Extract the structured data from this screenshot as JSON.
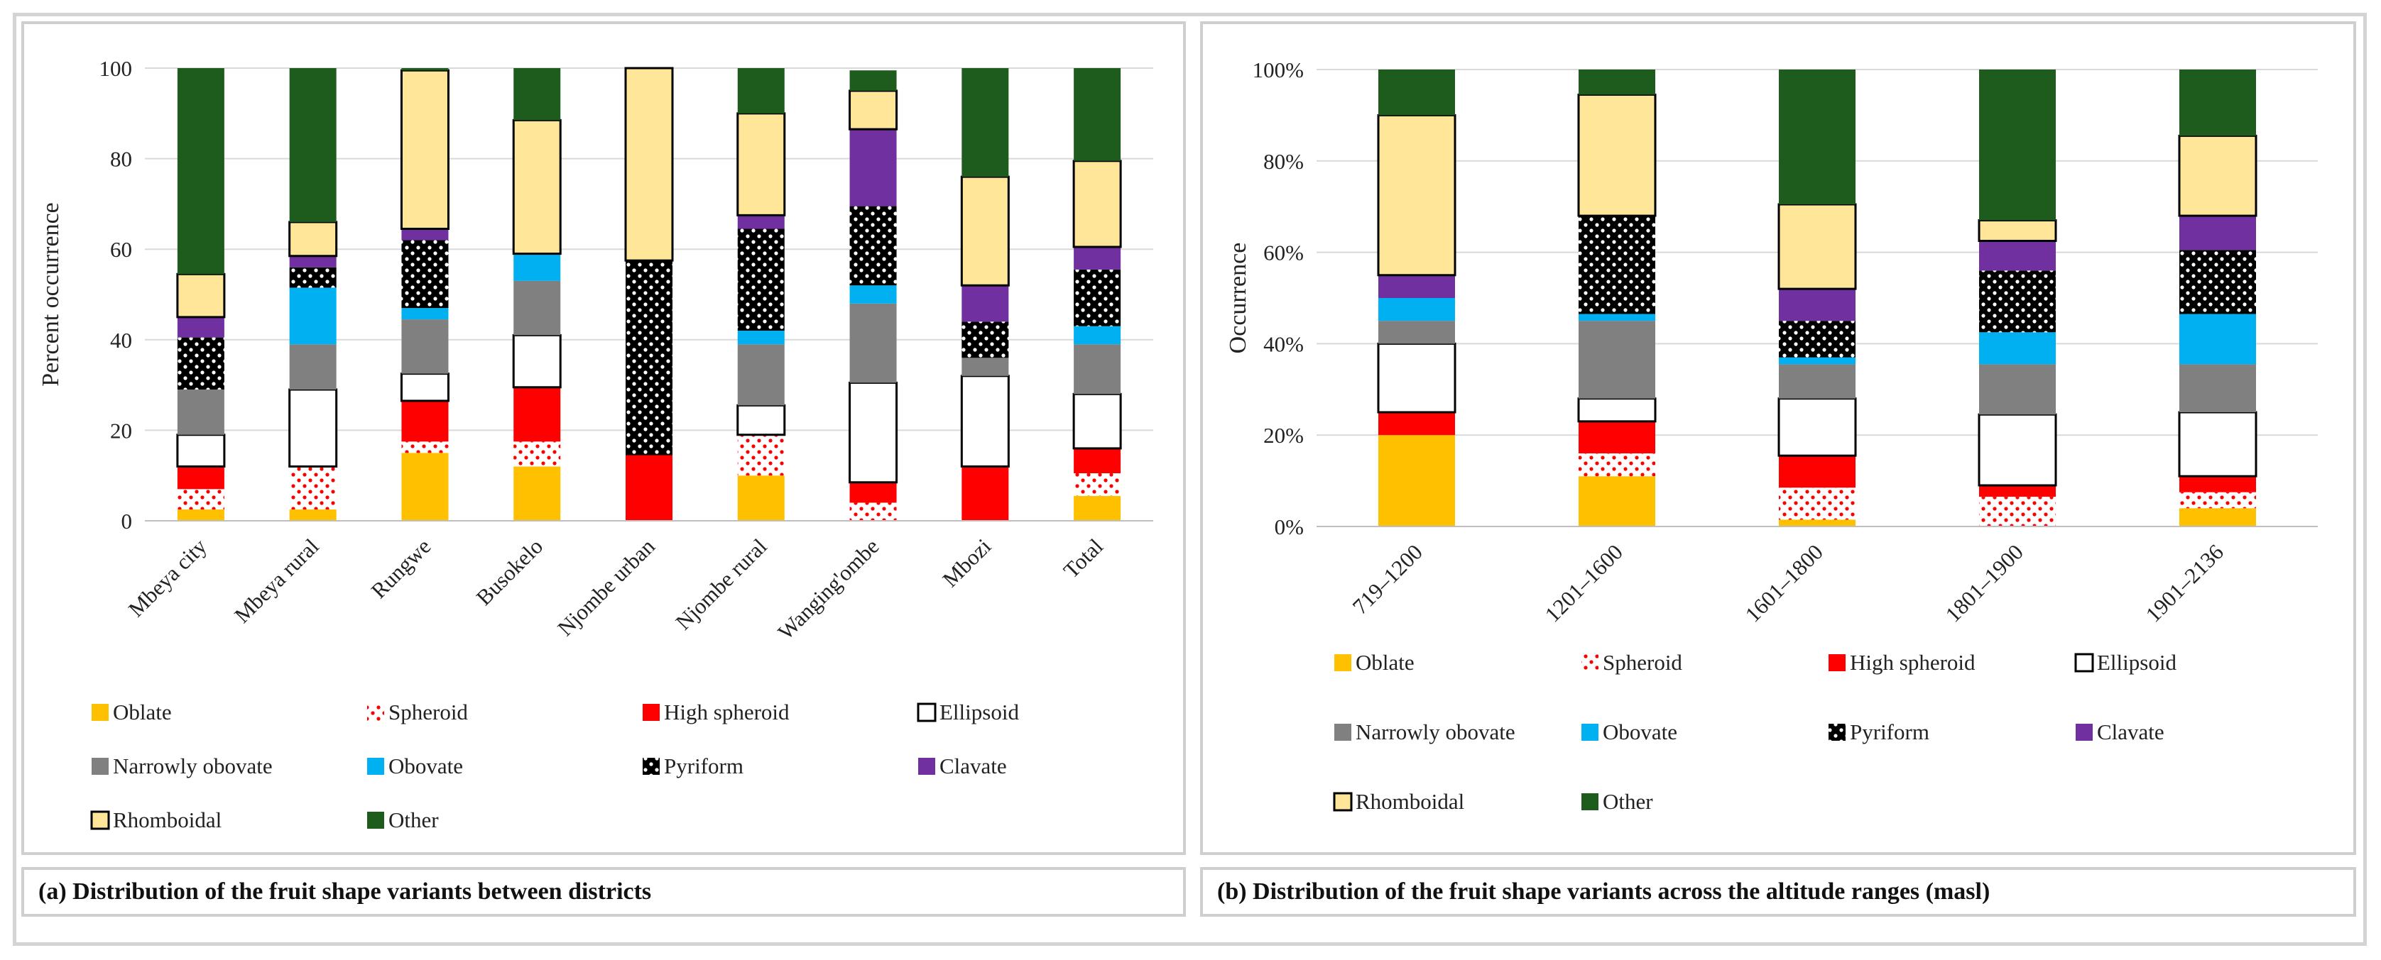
{
  "chart_data": [
    {
      "type": "bar",
      "stacked": true,
      "title": "",
      "xlabel": "",
      "ylabel": "Percent occurrence",
      "ylim": [
        0,
        100
      ],
      "yticks": [
        "0",
        "20",
        "40",
        "60",
        "80",
        "100"
      ],
      "grid": true,
      "legend_position": "bottom",
      "caption": "(a) Distribution of the fruit shape variants between districts",
      "categories": [
        "Mbeya city",
        "Mbeya rural",
        "Rungwe",
        "Busokelo",
        "Njombe urban",
        "Njombe rural",
        "Wanging'ombe",
        "Mbozi",
        "Total"
      ],
      "series": [
        {
          "name": "Oblate",
          "values": [
            2.5,
            2.5,
            15,
            12,
            0,
            10,
            0,
            0,
            5.5
          ]
        },
        {
          "name": "Spheroid",
          "values": [
            4.5,
            9.5,
            2.5,
            5.5,
            0,
            9,
            4,
            0,
            5
          ]
        },
        {
          "name": "High spheroid",
          "values": [
            5,
            0,
            9,
            12,
            14.5,
            0,
            4.5,
            12,
            5.5
          ]
        },
        {
          "name": "Ellipsoid",
          "values": [
            7,
            17,
            6,
            11.5,
            0,
            6.5,
            22,
            20,
            12
          ]
        },
        {
          "name": "Narrowly obovate",
          "values": [
            10,
            10,
            12,
            12,
            0,
            13.5,
            17.5,
            4,
            11
          ]
        },
        {
          "name": "Obovate",
          "values": [
            0,
            12.5,
            2.5,
            6,
            0,
            3,
            4,
            0,
            4
          ]
        },
        {
          "name": "Pyriform",
          "values": [
            11.5,
            4.5,
            15,
            0,
            43,
            22.5,
            17.5,
            8,
            12.5
          ]
        },
        {
          "name": "Clavate",
          "values": [
            4.5,
            2.5,
            2.5,
            0,
            0,
            3,
            17,
            8,
            5
          ]
        },
        {
          "name": "Rhomboidal",
          "values": [
            9.5,
            7.5,
            35,
            29.5,
            42.5,
            22.5,
            8.5,
            24,
            19
          ]
        },
        {
          "name": "Other",
          "values": [
            45.5,
            34,
            0.5,
            11.5,
            0,
            10,
            4.5,
            24,
            20.5
          ]
        }
      ]
    },
    {
      "type": "bar",
      "stacked": true,
      "title": "",
      "xlabel": "",
      "ylabel": "Occurrence",
      "ylim": [
        0,
        100
      ],
      "yticks": [
        "0%",
        "20%",
        "40%",
        "60%",
        "80%",
        "100%"
      ],
      "grid": true,
      "legend_position": "bottom",
      "caption": "(b) Distribution of the fruit shape variants across the altitude ranges (masl)",
      "categories": [
        "719–1200",
        "1201–1600",
        "1601–1800",
        "1801–1900",
        "1901–2136"
      ],
      "series": [
        {
          "name": "Oblate",
          "values": [
            20,
            11,
            1.5,
            0,
            4
          ]
        },
        {
          "name": "Spheroid",
          "values": [
            0,
            5,
            7,
            6.5,
            3.5
          ]
        },
        {
          "name": "High spheroid",
          "values": [
            5,
            7,
            7,
            2.5,
            3.5
          ]
        },
        {
          "name": "Ellipsoid",
          "values": [
            15,
            5,
            12.5,
            15.5,
            14
          ]
        },
        {
          "name": "Narrowly obovate",
          "values": [
            5,
            17,
            7.5,
            11,
            10.5
          ]
        },
        {
          "name": "Obovate",
          "values": [
            5,
            1.5,
            1.5,
            7,
            11
          ]
        },
        {
          "name": "Pyriform",
          "values": [
            0,
            21.5,
            8,
            13.5,
            14
          ]
        },
        {
          "name": "Clavate",
          "values": [
            5,
            0,
            7,
            6.5,
            7.5
          ]
        },
        {
          "name": "Rhomboidal",
          "values": [
            35,
            26.5,
            18.5,
            4.5,
            17.5
          ]
        },
        {
          "name": "Other",
          "values": [
            10,
            5.5,
            29.5,
            33,
            14.5
          ]
        }
      ]
    }
  ],
  "series_styles": {
    "Oblate": {
      "fill": "#FFC000",
      "pattern": "none",
      "stroke": "none"
    },
    "Spheroid": {
      "fill": "#FFFFFF",
      "pattern": "red-dots",
      "stroke": "none"
    },
    "High spheroid": {
      "fill": "#FF0000",
      "pattern": "none",
      "stroke": "none"
    },
    "Ellipsoid": {
      "fill": "#FFFFFF",
      "pattern": "none",
      "stroke": "#000000"
    },
    "Narrowly obovate": {
      "fill": "#808080",
      "pattern": "none",
      "stroke": "none"
    },
    "Obovate": {
      "fill": "#00B0F0",
      "pattern": "none",
      "stroke": "none"
    },
    "Pyriform": {
      "fill": "#000000",
      "pattern": "white-dots",
      "stroke": "none"
    },
    "Clavate": {
      "fill": "#7030A0",
      "pattern": "none",
      "stroke": "none"
    },
    "Rhomboidal": {
      "fill": "#FFE699",
      "pattern": "none",
      "stroke": "#000000"
    },
    "Other": {
      "fill": "#1E5C1E",
      "pattern": "none",
      "stroke": "none"
    }
  }
}
